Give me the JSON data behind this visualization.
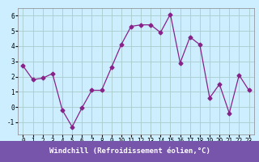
{
  "x": [
    0,
    1,
    2,
    3,
    4,
    5,
    6,
    7,
    8,
    9,
    10,
    11,
    12,
    13,
    14,
    15,
    16,
    17,
    18,
    19,
    20,
    21,
    22,
    23
  ],
  "y": [
    2.7,
    1.8,
    1.9,
    2.2,
    -0.2,
    -1.3,
    -0.05,
    1.1,
    1.1,
    2.6,
    4.1,
    5.3,
    5.4,
    5.4,
    4.9,
    6.1,
    2.9,
    4.6,
    4.1,
    0.6,
    1.5,
    -0.4,
    2.1,
    1.1
  ],
  "line_color": "#882288",
  "marker": "D",
  "marker_size": 2.5,
  "bg_color": "#cceeff",
  "grid_color": "#aacccc",
  "xlabel": "Windchill (Refroidissement éolien,°C)",
  "xlabel_bg": "#7755aa",
  "xlabel_color": "#ffffff",
  "ylim": [
    -1.8,
    6.5
  ],
  "xlim": [
    -0.5,
    23.5
  ],
  "yticks": [
    -1,
    0,
    1,
    2,
    3,
    4,
    5,
    6
  ],
  "xticks": [
    0,
    1,
    2,
    3,
    4,
    5,
    6,
    7,
    8,
    9,
    10,
    11,
    12,
    13,
    14,
    15,
    16,
    17,
    18,
    19,
    20,
    21,
    22,
    23
  ],
  "tick_fontsize": 5.5,
  "xlabel_fontsize": 6.5
}
